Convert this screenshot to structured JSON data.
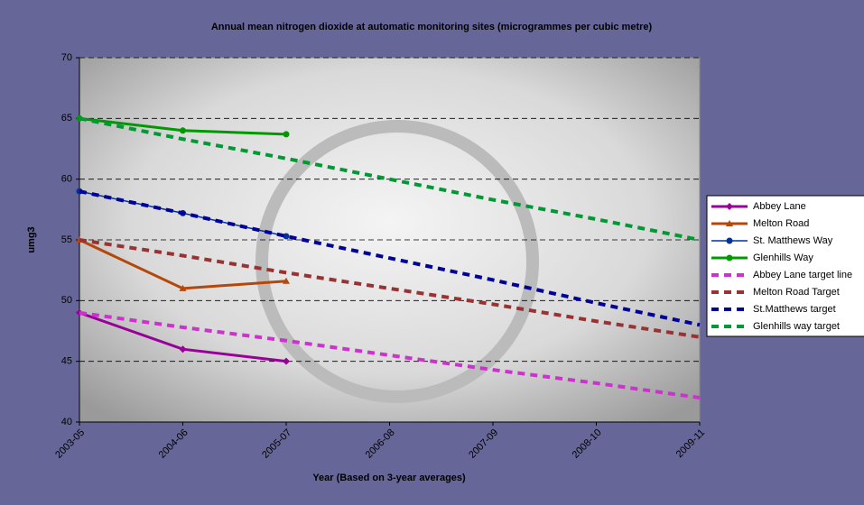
{
  "chart_data": {
    "type": "line",
    "title": "Annual mean nitrogen dioxide at automatic monitoring sites (microgrammes per cubic metre)",
    "x_label": "Year (Based on 3-year averages)",
    "y_label": "umg3",
    "categories": [
      "2003-05",
      "2004-06",
      "2005-07",
      "2006-08",
      "2007-09",
      "2008-10",
      "2009-11"
    ],
    "ylim": [
      40,
      70
    ],
    "yticks": [
      40,
      45,
      50,
      55,
      60,
      65,
      70
    ],
    "grid": true,
    "legend": "right",
    "series": [
      {
        "name": "Abbey Lane",
        "color": "#990099",
        "marker": "diamond",
        "dashed": false,
        "values": [
          49,
          46,
          45,
          null,
          null,
          null,
          null
        ]
      },
      {
        "name": "Melton Road",
        "color": "#b5470b",
        "marker": "triangle",
        "dashed": false,
        "values": [
          55,
          51,
          51.6,
          null,
          null,
          null,
          null
        ]
      },
      {
        "name": "St. Matthews Way",
        "color": "#003399",
        "marker": "circle",
        "dashed": false,
        "values": [
          59,
          57.2,
          55.3,
          null,
          null,
          null,
          null
        ]
      },
      {
        "name": "Glenhills Way",
        "color": "#009900",
        "marker": "circle",
        "dashed": false,
        "values": [
          65,
          64,
          63.7,
          null,
          null,
          null,
          null
        ]
      },
      {
        "name": "Abbey Lane target line",
        "color": "#cc33cc",
        "marker": "none",
        "dashed": true,
        "values": [
          49,
          47.8,
          46.7,
          45.5,
          44.3,
          43.2,
          42
        ]
      },
      {
        "name": "Melton Road Target",
        "color": "#993333",
        "marker": "none",
        "dashed": true,
        "values": [
          55,
          53.7,
          52.3,
          51,
          49.7,
          48.3,
          47
        ]
      },
      {
        "name": "St.Matthews target",
        "color": "#000099",
        "marker": "none",
        "dashed": true,
        "values": [
          59,
          57.2,
          55.3,
          53.5,
          51.7,
          49.8,
          48
        ]
      },
      {
        "name": "Glenhills way target",
        "color": "#009933",
        "marker": "none",
        "dashed": true,
        "values": [
          65,
          63.3,
          61.7,
          60,
          58.3,
          56.7,
          55
        ]
      }
    ]
  }
}
